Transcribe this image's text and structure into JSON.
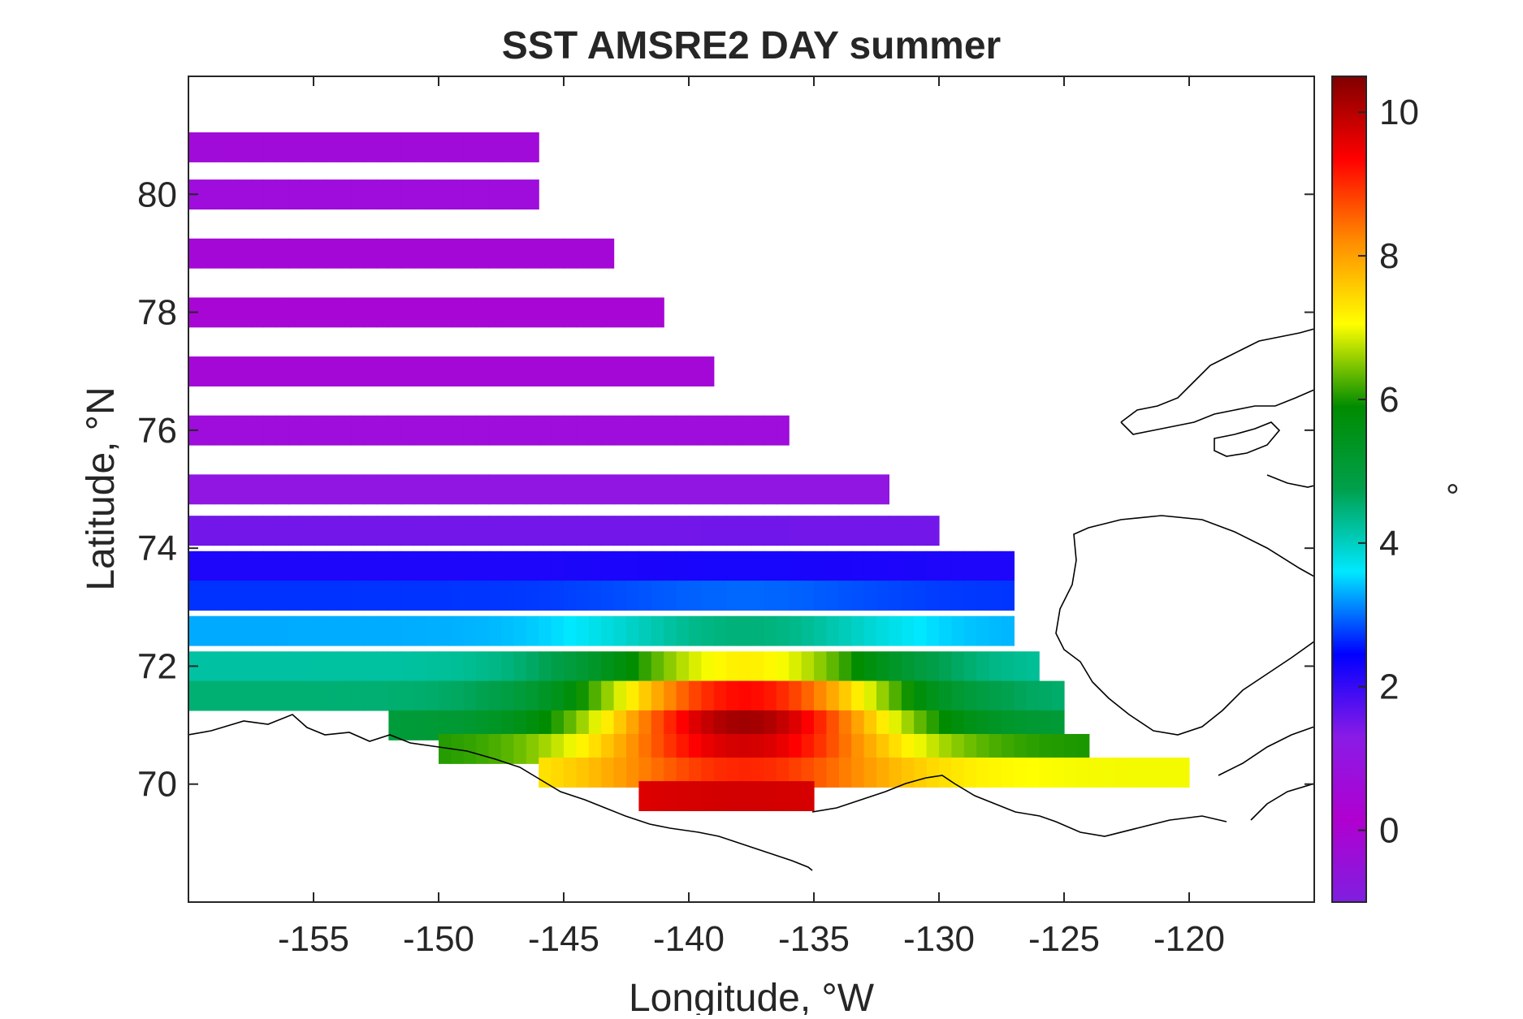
{
  "chart_data": {
    "type": "heatmap",
    "title": "SST AMSRE2 DAY summer",
    "xlabel": "Longitude, °W",
    "ylabel": "Latitude, °N",
    "xlim": [
      -160,
      -115
    ],
    "ylim": [
      68,
      82
    ],
    "x_ticks": [
      -155,
      -150,
      -145,
      -140,
      -135,
      -130,
      -125,
      -120
    ],
    "y_ticks": [
      70,
      72,
      74,
      76,
      78,
      80
    ],
    "colorbar": {
      "label": "°",
      "range": [
        -1,
        10.5
      ],
      "ticks": [
        0,
        2,
        4,
        6,
        8,
        10
      ],
      "colormap": [
        "#7f1fe0",
        "#b000d0",
        "#8a1be6",
        "#0000ff",
        "#00e8ff",
        "#00a04c",
        "#008c00",
        "#ffff00",
        "#ff8c00",
        "#ff0000",
        "#800000"
      ]
    },
    "land_color": "#ffffff",
    "coastline_color": "#000000",
    "grid": false,
    "data_description": {
      "rows": [
        {
          "lat": 80.8,
          "lon_start": -160,
          "lon_end": -146,
          "sst": 0.6
        },
        {
          "lat": 80.0,
          "lon_start": -160,
          "lon_end": -146,
          "sst": 0.7
        },
        {
          "lat": 79.0,
          "lon_start": -160,
          "lon_end": -143,
          "sst": 0.5
        },
        {
          "lat": 78.0,
          "lon_start": -160,
          "lon_end": -141,
          "sst": 0.4
        },
        {
          "lat": 77.0,
          "lon_start": -160,
          "lon_end": -139,
          "sst": 0.5
        },
        {
          "lat": 76.0,
          "lon_start": -160,
          "lon_end": -136,
          "sst": 0.7
        },
        {
          "lat": 75.0,
          "lon_start": -160,
          "lon_end": -132,
          "sst": 1.1
        },
        {
          "lat": 74.3,
          "lon_start": -160,
          "lon_end": -130,
          "sst": 1.5
        },
        {
          "lat": 73.7,
          "lon_start": -160,
          "lon_end": -127,
          "sst": 2.2
        },
        {
          "lat": 73.2,
          "lon_start": -160,
          "lon_end": -127,
          "sst": 2.7
        },
        {
          "lat": 72.6,
          "lon_start": -160,
          "lon_end": -127,
          "sst": 3.3
        },
        {
          "lat": 72.0,
          "lon_start": -160,
          "lon_end": -126,
          "sst": 4.2
        },
        {
          "lat": 71.5,
          "lon_start": -160,
          "lon_end": -125,
          "sst": 4.5
        },
        {
          "lat": 71.0,
          "lon_start": -152,
          "lon_end": -125,
          "sst": 5.0
        },
        {
          "lat": 70.6,
          "lon_start": -150,
          "lon_end": -124,
          "sst": 6.0
        },
        {
          "lat": 70.2,
          "lon_start": -146,
          "lon_end": -120,
          "sst": 7.0
        },
        {
          "lat": 69.8,
          "lon_start": -142,
          "lon_end": -135,
          "sst": 9.5
        }
      ],
      "hotspot": {
        "lat": 71.0,
        "lon": -138,
        "sst": 10.2
      }
    }
  }
}
